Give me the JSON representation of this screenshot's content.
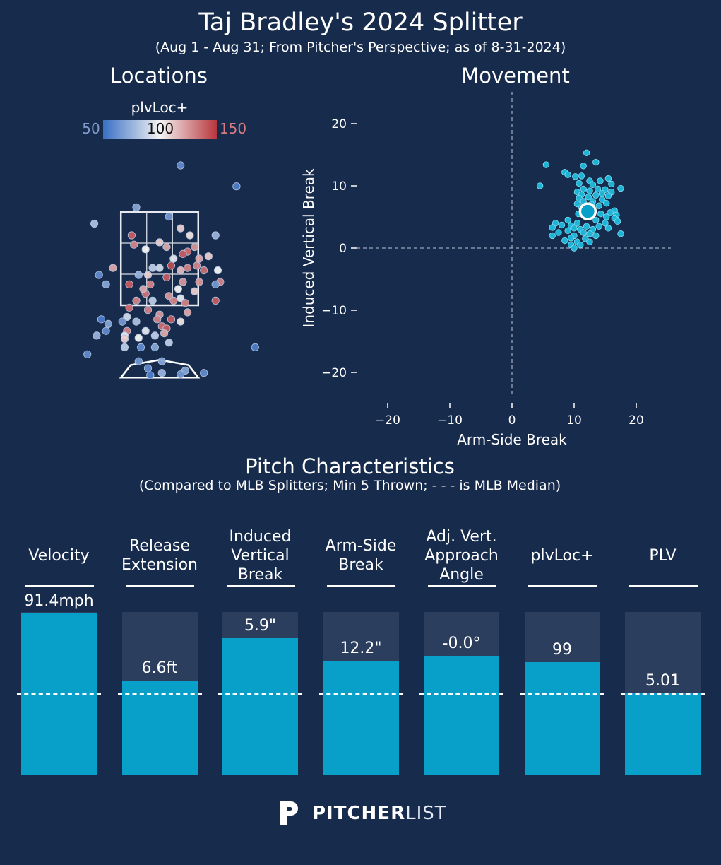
{
  "title": "Taj Bradley's 2024 Splitter",
  "subtitle": "(Aug 1 - Aug 31; From Pitcher's Perspective; as of 8-31-2024)",
  "locations": {
    "title": "Locations",
    "colorbar": {
      "label": "plvLoc+",
      "min": "50",
      "mid": "100",
      "max": "150",
      "colors": {
        "low": "#3a6fc4",
        "mid": "#f4f4f4",
        "high": "#b8363c"
      }
    }
  },
  "movement": {
    "title": "Movement",
    "xlabel": "Arm-Side Break",
    "ylabel": "Induced Vertical Break"
  },
  "characteristics": {
    "title": "Pitch Characteristics",
    "subtitle": "(Compared to MLB Splitters; Min 5 Thrown; - - - is MLB Median)",
    "metrics": [
      {
        "label": "Velocity",
        "value": "91.4mph",
        "pct": 0.99
      },
      {
        "label": "Release\nExtension",
        "value": "6.6ft",
        "pct": 0.58
      },
      {
        "label": "Induced\nVertical\nBreak",
        "value": "5.9\"",
        "pct": 0.84
      },
      {
        "label": "Arm-Side\nBreak",
        "value": "12.2\"",
        "pct": 0.7
      },
      {
        "label": "Adj. Vert.\nApproach\nAngle",
        "value": "-0.0°",
        "pct": 0.73
      },
      {
        "label": "plvLoc+",
        "value": "99",
        "pct": 0.69
      },
      {
        "label": "PLV",
        "value": "5.01",
        "pct": 0.5
      }
    ]
  },
  "brand": {
    "bold": "PITCHER",
    "light": "LIST"
  },
  "chart_data": [
    {
      "type": "scatter",
      "title": "Locations",
      "xlabel": "",
      "ylabel": "",
      "xlim": [
        -2.0,
        2.3
      ],
      "ylim": [
        -0.5,
        4.7
      ],
      "strike_zone": {
        "x": [
          -0.83,
          0.83
        ],
        "y": [
          1.5,
          3.5
        ]
      },
      "color_by": "plvLoc+",
      "color_range": [
        50,
        150
      ],
      "points": [
        {
          "x": 0.45,
          "y": 4.5,
          "v": 60
        },
        {
          "x": 1.65,
          "y": 4.05,
          "v": 55
        },
        {
          "x": -0.5,
          "y": 3.6,
          "v": 70
        },
        {
          "x": 0.2,
          "y": 3.4,
          "v": 65
        },
        {
          "x": -1.4,
          "y": 3.25,
          "v": 80
        },
        {
          "x": 0.45,
          "y": 3.15,
          "v": 110
        },
        {
          "x": 1.2,
          "y": 3.0,
          "v": 75
        },
        {
          "x": -0.6,
          "y": 3.0,
          "v": 140
        },
        {
          "x": -0.55,
          "y": 2.8,
          "v": 130
        },
        {
          "x": 0.0,
          "y": 2.85,
          "v": 110
        },
        {
          "x": 0.15,
          "y": 2.75,
          "v": 120
        },
        {
          "x": 0.65,
          "y": 3.0,
          "v": 105
        },
        {
          "x": 0.75,
          "y": 2.75,
          "v": 125
        },
        {
          "x": 0.6,
          "y": 2.65,
          "v": 135
        },
        {
          "x": -0.3,
          "y": 2.7,
          "v": 100
        },
        {
          "x": 0.5,
          "y": 2.6,
          "v": 140
        },
        {
          "x": 0.85,
          "y": 2.5,
          "v": 120
        },
        {
          "x": 1.05,
          "y": 2.55,
          "v": 110
        },
        {
          "x": 0.3,
          "y": 2.5,
          "v": 95
        },
        {
          "x": 0.8,
          "y": 2.35,
          "v": 130
        },
        {
          "x": -1.0,
          "y": 2.3,
          "v": 120
        },
        {
          "x": 0.95,
          "y": 2.25,
          "v": 135
        },
        {
          "x": -0.15,
          "y": 2.3,
          "v": 85
        },
        {
          "x": 0.0,
          "y": 2.3,
          "v": 90
        },
        {
          "x": 0.25,
          "y": 2.35,
          "v": 145
        },
        {
          "x": 0.45,
          "y": 2.25,
          "v": 115
        },
        {
          "x": 0.6,
          "y": 2.3,
          "v": 130
        },
        {
          "x": -0.25,
          "y": 2.15,
          "v": 110
        },
        {
          "x": -0.45,
          "y": 2.15,
          "v": 75
        },
        {
          "x": 1.25,
          "y": 2.25,
          "v": 100
        },
        {
          "x": -1.3,
          "y": 2.15,
          "v": 60
        },
        {
          "x": 0.15,
          "y": 2.1,
          "v": 140
        },
        {
          "x": 0.5,
          "y": 2.0,
          "v": 125
        },
        {
          "x": 0.85,
          "y": 2.0,
          "v": 125
        },
        {
          "x": -0.65,
          "y": 1.95,
          "v": 140
        },
        {
          "x": -0.2,
          "y": 1.95,
          "v": 130
        },
        {
          "x": 1.3,
          "y": 2.0,
          "v": 130
        },
        {
          "x": -1.15,
          "y": 1.95,
          "v": 70
        },
        {
          "x": 0.4,
          "y": 1.85,
          "v": 100
        },
        {
          "x": 0.75,
          "y": 1.8,
          "v": 110
        },
        {
          "x": 1.2,
          "y": 1.95,
          "v": 65
        },
        {
          "x": -0.3,
          "y": 1.75,
          "v": 135
        },
        {
          "x": -0.35,
          "y": 1.85,
          "v": 120
        },
        {
          "x": 0.2,
          "y": 1.7,
          "v": 125
        },
        {
          "x": 0.45,
          "y": 1.65,
          "v": 95
        },
        {
          "x": -0.15,
          "y": 1.6,
          "v": 85
        },
        {
          "x": 0.55,
          "y": 1.55,
          "v": 130
        },
        {
          "x": 0.3,
          "y": 1.6,
          "v": 130
        },
        {
          "x": -0.5,
          "y": 1.6,
          "v": 130
        },
        {
          "x": 1.2,
          "y": 1.6,
          "v": 140
        },
        {
          "x": -0.65,
          "y": 1.45,
          "v": 135
        },
        {
          "x": -0.25,
          "y": 1.4,
          "v": 130
        },
        {
          "x": 0.6,
          "y": 1.35,
          "v": 120
        },
        {
          "x": 0.0,
          "y": 1.3,
          "v": 125
        },
        {
          "x": -0.7,
          "y": 1.25,
          "v": 90
        },
        {
          "x": -1.25,
          "y": 1.2,
          "v": 55
        },
        {
          "x": -0.8,
          "y": 1.15,
          "v": 65
        },
        {
          "x": -0.5,
          "y": 1.15,
          "v": 80
        },
        {
          "x": -0.05,
          "y": 1.2,
          "v": 130
        },
        {
          "x": 0.25,
          "y": 1.2,
          "v": 140
        },
        {
          "x": 0.45,
          "y": 1.15,
          "v": 105
        },
        {
          "x": -1.1,
          "y": 1.1,
          "v": 70
        },
        {
          "x": 0.05,
          "y": 1.05,
          "v": 135
        },
        {
          "x": 0.15,
          "y": 1.0,
          "v": 140
        },
        {
          "x": -1.15,
          "y": 0.95,
          "v": 60
        },
        {
          "x": -0.7,
          "y": 0.95,
          "v": 130
        },
        {
          "x": -0.3,
          "y": 0.95,
          "v": 95
        },
        {
          "x": 0.1,
          "y": 0.9,
          "v": 120
        },
        {
          "x": -1.35,
          "y": 0.85,
          "v": 75
        },
        {
          "x": -0.75,
          "y": 0.85,
          "v": 95
        },
        {
          "x": -0.45,
          "y": 0.8,
          "v": 100
        },
        {
          "x": -0.75,
          "y": 0.78,
          "v": 110
        },
        {
          "x": -0.1,
          "y": 0.85,
          "v": 85
        },
        {
          "x": 0.2,
          "y": 0.7,
          "v": 85
        },
        {
          "x": -0.4,
          "y": 0.6,
          "v": 60
        },
        {
          "x": -0.1,
          "y": 0.6,
          "v": 70
        },
        {
          "x": -0.75,
          "y": 0.6,
          "v": 85
        },
        {
          "x": 2.05,
          "y": 0.6,
          "v": 55
        },
        {
          "x": -1.55,
          "y": 0.45,
          "v": 60
        },
        {
          "x": -0.45,
          "y": 0.3,
          "v": 65
        },
        {
          "x": 0.05,
          "y": 0.3,
          "v": 70
        },
        {
          "x": -0.25,
          "y": 0.15,
          "v": 60
        },
        {
          "x": 0.05,
          "y": 0.05,
          "v": 75
        },
        {
          "x": 0.55,
          "y": 0.1,
          "v": 70
        },
        {
          "x": 0.95,
          "y": 0.05,
          "v": 60
        },
        {
          "x": -0.2,
          "y": 0.0,
          "v": 55
        },
        {
          "x": 0.45,
          "y": 0.02,
          "v": 65
        }
      ]
    },
    {
      "type": "scatter",
      "title": "Movement",
      "xlabel": "Arm-Side Break",
      "ylabel": "Induced Vertical Break",
      "xlim": [
        -25,
        25
      ],
      "ylim": [
        -25,
        25
      ],
      "xticks": [
        -20,
        -10,
        0,
        10,
        20
      ],
      "yticks": [
        20,
        10,
        0,
        -10,
        -20
      ],
      "average": {
        "x": 12.2,
        "y": 5.9
      },
      "points": [
        {
          "x": 12,
          "y": 15.3
        },
        {
          "x": 13.5,
          "y": 13.8
        },
        {
          "x": 5.5,
          "y": 13.4
        },
        {
          "x": 11.5,
          "y": 13.2
        },
        {
          "x": 8.5,
          "y": 12.2
        },
        {
          "x": 9,
          "y": 11.8
        },
        {
          "x": 10.2,
          "y": 11.5
        },
        {
          "x": 11.2,
          "y": 11.6
        },
        {
          "x": 15.5,
          "y": 11.2
        },
        {
          "x": 12.5,
          "y": 10.8
        },
        {
          "x": 14.2,
          "y": 10.8
        },
        {
          "x": 10.8,
          "y": 10.4
        },
        {
          "x": 13,
          "y": 10.2
        },
        {
          "x": 16,
          "y": 10.3
        },
        {
          "x": 4.5,
          "y": 10
        },
        {
          "x": 17.5,
          "y": 9.6
        },
        {
          "x": 11.5,
          "y": 9.5
        },
        {
          "x": 13.8,
          "y": 9.5
        },
        {
          "x": 15,
          "y": 9.4
        },
        {
          "x": 12.5,
          "y": 9.2
        },
        {
          "x": 10.5,
          "y": 9
        },
        {
          "x": 16,
          "y": 9
        },
        {
          "x": 14.5,
          "y": 8.8
        },
        {
          "x": 11.2,
          "y": 8.6
        },
        {
          "x": 13.5,
          "y": 8.5
        },
        {
          "x": 15.5,
          "y": 8.4
        },
        {
          "x": 12.3,
          "y": 8.2
        },
        {
          "x": 10.8,
          "y": 8
        },
        {
          "x": 14.5,
          "y": 7.8
        },
        {
          "x": 11.5,
          "y": 7.5
        },
        {
          "x": 13,
          "y": 7.5
        },
        {
          "x": 15.2,
          "y": 7.2
        },
        {
          "x": 10.5,
          "y": 7.1
        },
        {
          "x": 12.8,
          "y": 7
        },
        {
          "x": 14,
          "y": 6.8
        },
        {
          "x": 11.2,
          "y": 6.5
        },
        {
          "x": 16.5,
          "y": 6
        },
        {
          "x": 15.8,
          "y": 5.7
        },
        {
          "x": 10.7,
          "y": 5.5
        },
        {
          "x": 14.3,
          "y": 5.5
        },
        {
          "x": 16.8,
          "y": 5.3
        },
        {
          "x": 12,
          "y": 5
        },
        {
          "x": 15.2,
          "y": 5
        },
        {
          "x": 16.5,
          "y": 4.8
        },
        {
          "x": 9,
          "y": 4.5
        },
        {
          "x": 13.5,
          "y": 4.5
        },
        {
          "x": 17,
          "y": 4.3
        },
        {
          "x": 7,
          "y": 4
        },
        {
          "x": 10.5,
          "y": 4
        },
        {
          "x": 15,
          "y": 4
        },
        {
          "x": 8,
          "y": 3.7
        },
        {
          "x": 9.5,
          "y": 3.6
        },
        {
          "x": 12,
          "y": 3.5
        },
        {
          "x": 14,
          "y": 3.5
        },
        {
          "x": 6.5,
          "y": 3.3
        },
        {
          "x": 10,
          "y": 3.2
        },
        {
          "x": 15.5,
          "y": 3.2
        },
        {
          "x": 11,
          "y": 3
        },
        {
          "x": 13,
          "y": 3
        },
        {
          "x": 9,
          "y": 2.8
        },
        {
          "x": 7.5,
          "y": 2.5
        },
        {
          "x": 11.5,
          "y": 2.5
        },
        {
          "x": 12.5,
          "y": 2.3
        },
        {
          "x": 17.5,
          "y": 2.3
        },
        {
          "x": 6.5,
          "y": 2
        },
        {
          "x": 10,
          "y": 2
        },
        {
          "x": 13.5,
          "y": 2
        },
        {
          "x": 9.5,
          "y": 1.6
        },
        {
          "x": 11.8,
          "y": 1.5
        },
        {
          "x": 8.5,
          "y": 1.2
        },
        {
          "x": 10.5,
          "y": 1
        },
        {
          "x": 12.5,
          "y": 1
        },
        {
          "x": 9.5,
          "y": 0.5
        },
        {
          "x": 11,
          "y": 0.5
        },
        {
          "x": 10,
          "y": 0
        }
      ]
    },
    {
      "type": "bar",
      "title": "Pitch Characteristics",
      "categories": [
        "Velocity",
        "Release Extension",
        "Induced Vertical Break",
        "Arm-Side Break",
        "Adj. Vert. Approach Angle",
        "plvLoc+",
        "PLV"
      ],
      "values": [
        0.99,
        0.58,
        0.84,
        0.7,
        0.73,
        0.69,
        0.5
      ],
      "labels": [
        "91.4mph",
        "6.6ft",
        "5.9\"",
        "12.2\"",
        "-0.0°",
        "99",
        "5.01"
      ],
      "ylim": [
        0,
        1
      ],
      "median": 0.5
    }
  ]
}
